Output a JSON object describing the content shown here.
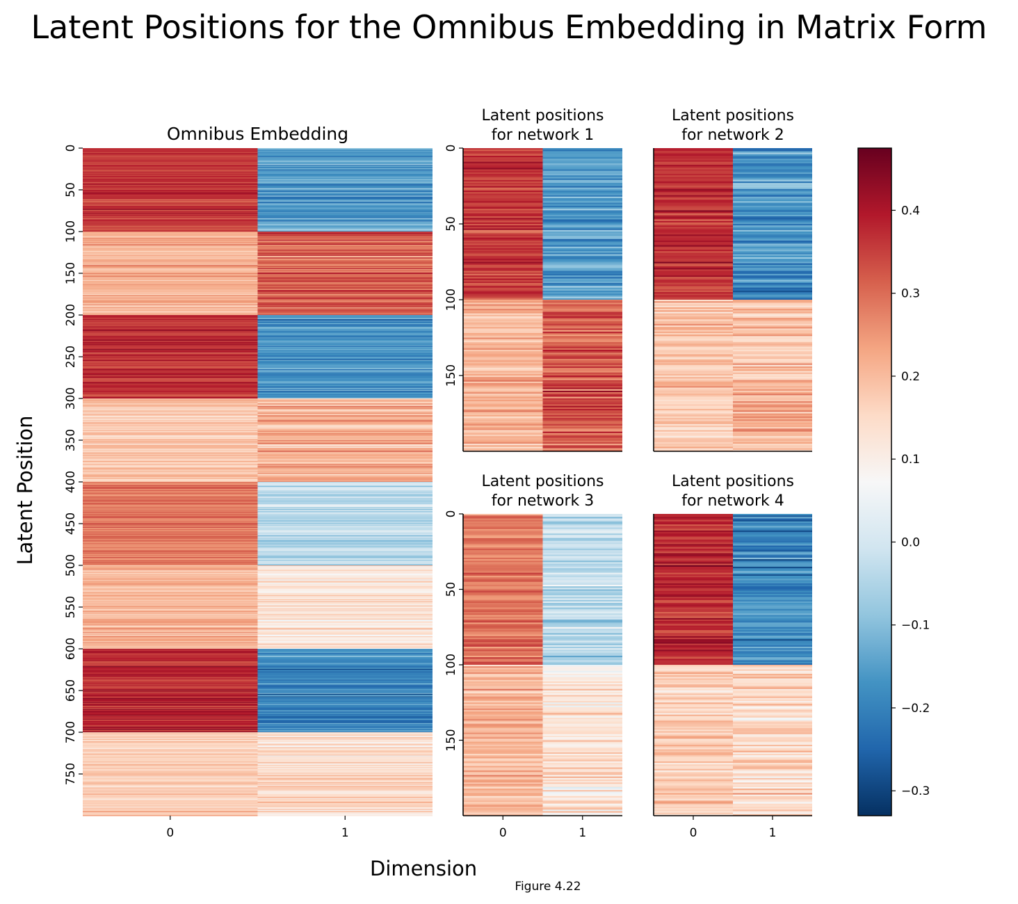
{
  "title": "Latent Positions for the Omnibus Embedding in Matrix Form",
  "xlabel": "Dimension",
  "ylabel": "Latent Position",
  "caption": "Figure 4.22",
  "chart_data": [
    {
      "type": "heatmap",
      "title": "Omnibus Embedding",
      "rows": 800,
      "columns": [
        "0",
        "1"
      ],
      "yticks": [
        "0",
        "50",
        "100",
        "150",
        "200",
        "250",
        "300",
        "350",
        "400",
        "450",
        "500",
        "550",
        "600",
        "650",
        "700",
        "750"
      ],
      "row_blocks": [
        {
          "rows": [
            0,
            99
          ],
          "mean": [
            0.36,
            -0.16
          ]
        },
        {
          "rows": [
            100,
            199
          ],
          "mean": [
            0.21,
            0.32
          ]
        },
        {
          "rows": [
            200,
            299
          ],
          "mean": [
            0.37,
            -0.17
          ]
        },
        {
          "rows": [
            300,
            399
          ],
          "mean": [
            0.18,
            0.21
          ]
        },
        {
          "rows": [
            400,
            499
          ],
          "mean": [
            0.28,
            -0.04
          ]
        },
        {
          "rows": [
            500,
            599
          ],
          "mean": [
            0.21,
            0.12
          ]
        },
        {
          "rows": [
            600,
            699
          ],
          "mean": [
            0.38,
            -0.19
          ]
        },
        {
          "rows": [
            700,
            799
          ],
          "mean": [
            0.17,
            0.15
          ]
        }
      ]
    },
    {
      "type": "heatmap",
      "title": "Latent positions\nfor network 1",
      "rows": 200,
      "columns": [
        "0",
        "1"
      ],
      "yticks": [
        "0",
        "50",
        "100",
        "150"
      ],
      "row_blocks": [
        {
          "rows": [
            0,
            99
          ],
          "mean": [
            0.36,
            -0.16
          ]
        },
        {
          "rows": [
            100,
            199
          ],
          "mean": [
            0.21,
            0.32
          ]
        }
      ]
    },
    {
      "type": "heatmap",
      "title": "Latent positions\nfor network 2",
      "rows": 200,
      "columns": [
        "0",
        "1"
      ],
      "yticks": [],
      "row_blocks": [
        {
          "rows": [
            0,
            99
          ],
          "mean": [
            0.37,
            -0.17
          ]
        },
        {
          "rows": [
            100,
            199
          ],
          "mean": [
            0.18,
            0.21
          ]
        }
      ]
    },
    {
      "type": "heatmap",
      "title": "Latent positions\nfor network 3",
      "rows": 200,
      "columns": [
        "0",
        "1"
      ],
      "yticks": [
        "0",
        "50",
        "100",
        "150"
      ],
      "row_blocks": [
        {
          "rows": [
            0,
            99
          ],
          "mean": [
            0.28,
            -0.04
          ]
        },
        {
          "rows": [
            100,
            199
          ],
          "mean": [
            0.21,
            0.12
          ]
        }
      ]
    },
    {
      "type": "heatmap",
      "title": "Latent positions\nfor network 4",
      "rows": 200,
      "columns": [
        "0",
        "1"
      ],
      "yticks": [],
      "row_blocks": [
        {
          "rows": [
            0,
            99
          ],
          "mean": [
            0.38,
            -0.19
          ]
        },
        {
          "rows": [
            100,
            199
          ],
          "mean": [
            0.17,
            0.15
          ]
        }
      ]
    }
  ],
  "colorbar": {
    "colormap": "RdBu_r",
    "range": [
      -0.33,
      0.475
    ],
    "ticks": [
      -0.3,
      -0.2,
      -0.1,
      0.0,
      0.1,
      0.2,
      0.3,
      0.4
    ],
    "tick_labels": [
      "−0.3",
      "−0.2",
      "−0.1",
      "0.0",
      "0.1",
      "0.2",
      "0.3",
      "0.4"
    ],
    "position": "right"
  }
}
